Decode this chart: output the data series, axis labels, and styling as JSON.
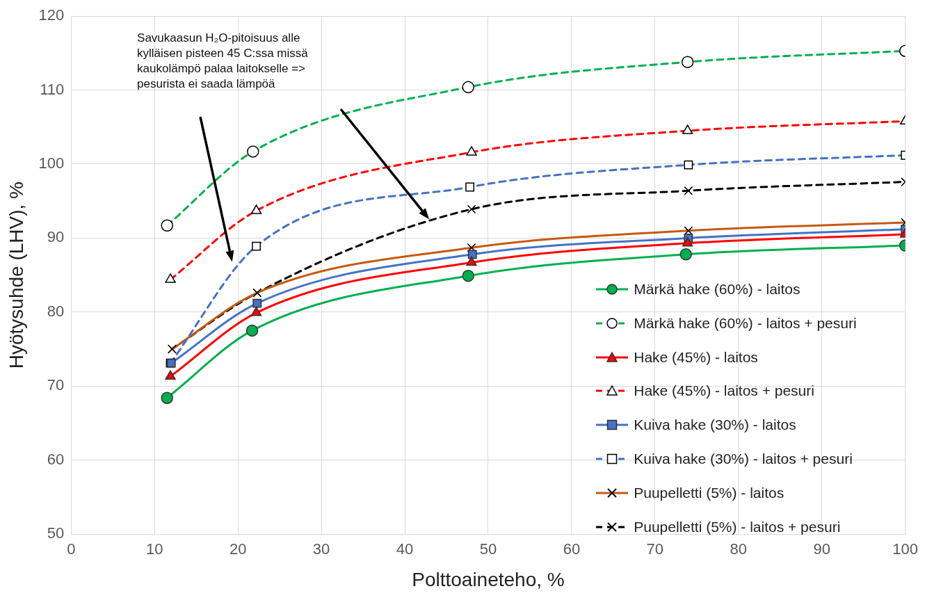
{
  "chart_data": {
    "type": "line",
    "xlabel": "Polttoaineteho, %",
    "ylabel": "Hyötysuhde (LHV), %",
    "xlim": [
      0,
      100
    ],
    "xticks": [
      0,
      10,
      20,
      30,
      40,
      50,
      60,
      70,
      80,
      90,
      100
    ],
    "ylim": [
      50,
      120
    ],
    "yticks": [
      50,
      60,
      70,
      80,
      90,
      100,
      110,
      120
    ],
    "grid": true,
    "legend": "bottom right",
    "annotations": [
      "Savukaasun H₂O-pitoisuus alle kylläisen pisteen 45 C:ssa missä kaukolämpö palaa laitokselle => pesurista ei saada lämpöä"
    ],
    "series": [
      {
        "name": "Märkä hake (60%) - laitos",
        "color": "#00b050",
        "marker": "circle",
        "line_style": "solid",
        "x": [
          11.5,
          21.7,
          47.6,
          73.7,
          100
        ],
        "values": [
          68.4,
          77.5,
          84.9,
          87.8,
          89.0
        ]
      },
      {
        "name": "Märkä hake (60%) - laitos + pesuri",
        "color": "#00b050",
        "marker": "circle",
        "line_style": "dashed",
        "x": [
          11.5,
          21.8,
          47.6,
          73.9,
          100
        ],
        "values": [
          91.7,
          101.7,
          110.4,
          113.8,
          115.3
        ]
      },
      {
        "name": "Hake (45%) - laitos",
        "color": "#ff0000",
        "marker": "triangle",
        "line_style": "solid",
        "x": [
          11.9,
          22.2,
          48.0,
          73.9,
          100
        ],
        "values": [
          71.3,
          79.9,
          86.7,
          89.3,
          90.5
        ]
      },
      {
        "name": "Hake (45%) - laitos + pesuri",
        "color": "#ff0000",
        "marker": "triangle",
        "line_style": "dashed",
        "x": [
          11.9,
          22.2,
          48.0,
          73.9,
          100
        ],
        "values": [
          84.4,
          93.7,
          101.6,
          104.5,
          105.8
        ]
      },
      {
        "name": "Kuiva hake (30%) - laitos",
        "color": "#4472c4",
        "marker": "square",
        "line_style": "solid",
        "x": [
          12.0,
          22.3,
          48.1,
          74.0,
          100
        ],
        "values": [
          73.1,
          81.2,
          87.8,
          90.0,
          91.2
        ]
      },
      {
        "name": "Kuiva hake (30%) - laitos + pesuri",
        "color": "#4472c4",
        "marker": "square",
        "line_style": "dashed",
        "x": [
          11.9,
          22.2,
          47.8,
          74.0,
          100
        ],
        "values": [
          73.1,
          88.9,
          96.9,
          99.9,
          101.2
        ]
      },
      {
        "name": "Puupelletti (5%) - laitos",
        "color": "#c55a11",
        "marker": "cross",
        "line_style": "solid",
        "x": [
          12.1,
          22.3,
          48.0,
          74.0,
          100
        ],
        "values": [
          75.0,
          82.6,
          88.7,
          91.0,
          92.1
        ]
      },
      {
        "name": "Puupelletti (5%) - laitos + pesuri",
        "color": "#000000",
        "marker": "cross",
        "line_style": "dashed",
        "x": [
          12.1,
          22.3,
          48.0,
          74.0,
          100
        ],
        "values": [
          75.0,
          82.6,
          93.9,
          96.4,
          97.6
        ]
      }
    ]
  }
}
